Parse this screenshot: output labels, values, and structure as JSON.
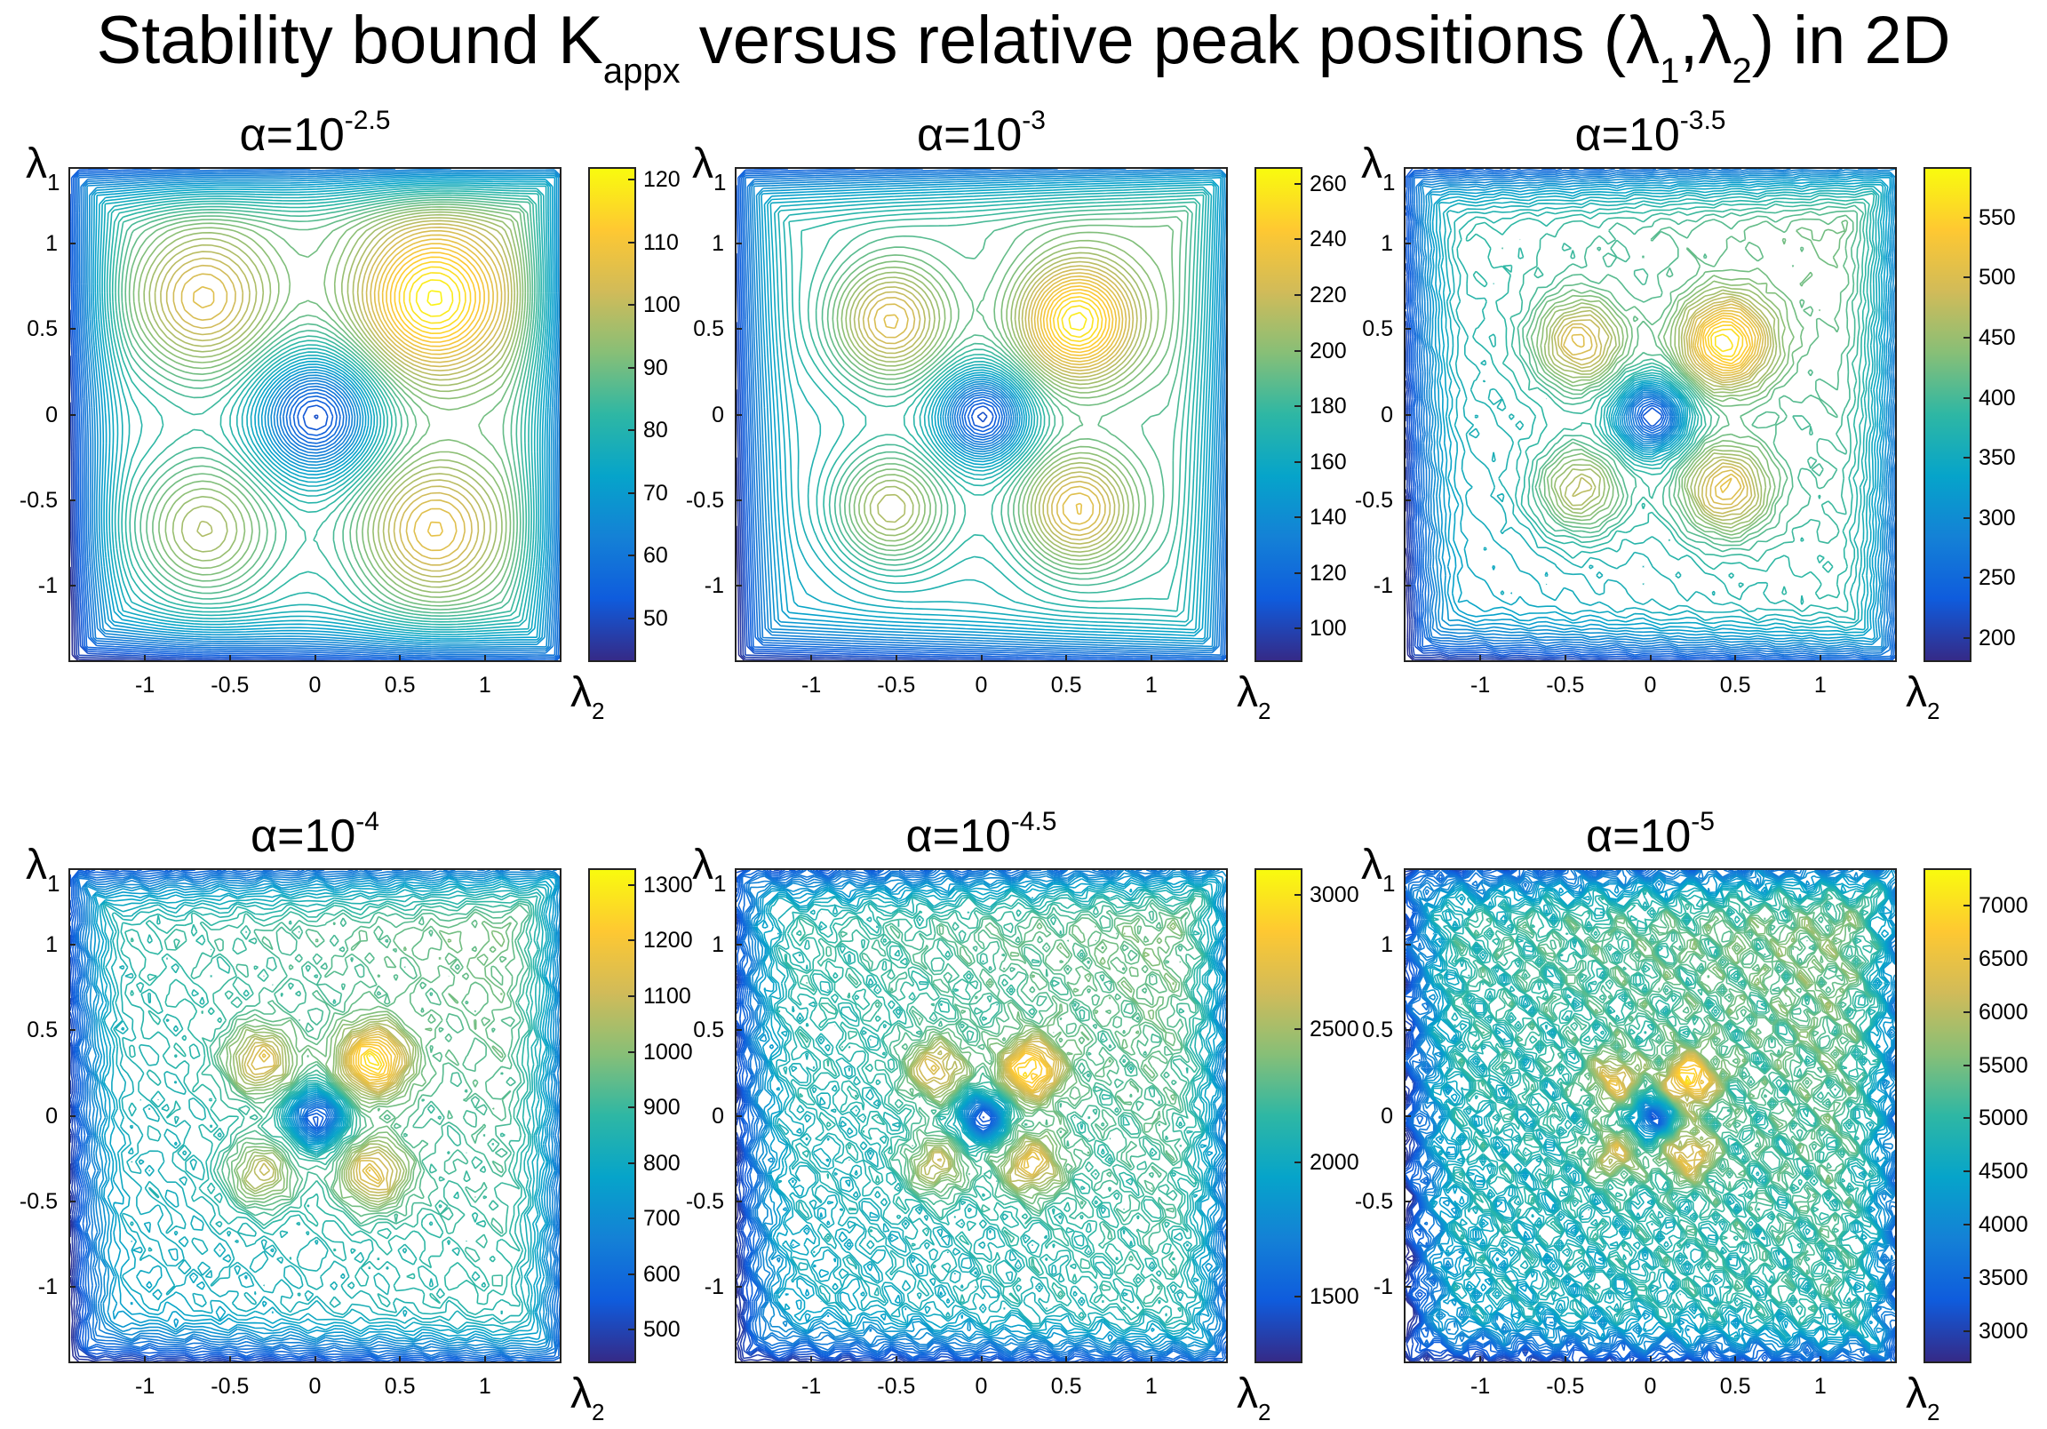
{
  "title": {
    "main_pre": "Stability bound K",
    "main_sub": "appx",
    "main_post": " versus relative peak positions (λ",
    "lam1_sub": "1",
    "comma": ",λ",
    "lam2_sub": "2",
    "main_end": ") in 2D"
  },
  "colors": {
    "viridis_like": [
      "#352a87",
      "#0f5cdd",
      "#1481d6",
      "#06a4ca",
      "#2eb7a4",
      "#87bf77",
      "#d1bb59",
      "#fec832",
      "#f9fb0e"
    ]
  },
  "chart_data": [
    {
      "type": "contour",
      "title_base": "α=10",
      "title_exp": "-2.5",
      "xlabel": "λ",
      "xlabel_sub": "2",
      "ylabel": "λ",
      "ylabel_sub": "1",
      "xlim": [
        -1.45,
        1.45
      ],
      "ylim": [
        -1.45,
        1.45
      ],
      "xticks": [
        "-1",
        "-0.5",
        "0",
        "0.5",
        "1"
      ],
      "xtick_values": [
        -1,
        -0.5,
        0,
        0.5,
        1
      ],
      "yticks": [
        "1",
        "0.5",
        "0",
        "-0.5",
        "-1"
      ],
      "ytick_values": [
        1,
        0.5,
        0,
        -0.5,
        -1
      ],
      "clim": [
        43,
        122
      ],
      "cticks": [
        "120",
        "110",
        "100",
        "90",
        "80",
        "70",
        "60",
        "50"
      ],
      "ctick_values": [
        120,
        110,
        100,
        90,
        80,
        70,
        60,
        50
      ],
      "peak_offset": 0.68,
      "peak_width": 0.32,
      "noise": 0.0
    },
    {
      "type": "contour",
      "title_base": "α=10",
      "title_exp": "-3",
      "xlabel": "λ",
      "xlabel_sub": "2",
      "ylabel": "λ",
      "ylabel_sub": "1",
      "xlim": [
        -1.45,
        1.45
      ],
      "ylim": [
        -1.45,
        1.45
      ],
      "xticks": [
        "-1",
        "-0.5",
        "0",
        "0.5",
        "1"
      ],
      "xtick_values": [
        -1,
        -0.5,
        0,
        0.5,
        1
      ],
      "yticks": [
        "1",
        "0.5",
        "0",
        "-0.5",
        "-1"
      ],
      "ytick_values": [
        1,
        0.5,
        0,
        -0.5,
        -1
      ],
      "clim": [
        88,
        266
      ],
      "cticks": [
        "260",
        "240",
        "220",
        "200",
        "180",
        "160",
        "140",
        "120",
        "100"
      ],
      "ctick_values": [
        260,
        240,
        220,
        200,
        180,
        160,
        140,
        120,
        100
      ],
      "peak_offset": 0.55,
      "peak_width": 0.24,
      "noise": 0.0
    },
    {
      "type": "contour",
      "title_base": "α=10",
      "title_exp": "-3.5",
      "xlabel": "λ",
      "xlabel_sub": "2",
      "ylabel": "λ",
      "ylabel_sub": "1",
      "xlim": [
        -1.45,
        1.45
      ],
      "ylim": [
        -1.45,
        1.45
      ],
      "xticks": [
        "-1",
        "-0.5",
        "0",
        "0.5",
        "1"
      ],
      "xtick_values": [
        -1,
        -0.5,
        0,
        0.5,
        1
      ],
      "yticks": [
        "1",
        "0.5",
        "0",
        "-0.5",
        "-1"
      ],
      "ytick_values": [
        1,
        0.5,
        0,
        -0.5,
        -1
      ],
      "clim": [
        180,
        592
      ],
      "cticks": [
        "550",
        "500",
        "450",
        "400",
        "350",
        "300",
        "250",
        "200"
      ],
      "ctick_values": [
        550,
        500,
        450,
        400,
        350,
        300,
        250,
        200
      ],
      "peak_offset": 0.43,
      "peak_width": 0.19,
      "noise": 0.03
    },
    {
      "type": "contour",
      "title_base": "α=10",
      "title_exp": "-4",
      "xlabel": "λ",
      "xlabel_sub": "2",
      "ylabel": "λ",
      "ylabel_sub": "1",
      "xlim": [
        -1.45,
        1.45
      ],
      "ylim": [
        -1.45,
        1.45
      ],
      "xticks": [
        "-1",
        "-0.5",
        "0",
        "0.5",
        "1"
      ],
      "xtick_values": [
        -1,
        -0.5,
        0,
        0.5,
        1
      ],
      "yticks": [
        "1",
        "0.5",
        "0",
        "-0.5",
        "-1"
      ],
      "ytick_values": [
        1,
        0.5,
        0,
        -0.5,
        -1
      ],
      "clim": [
        440,
        1330
      ],
      "cticks": [
        "1300",
        "1200",
        "1100",
        "1000",
        "900",
        "800",
        "700",
        "600",
        "500"
      ],
      "ctick_values": [
        1300,
        1200,
        1100,
        1000,
        900,
        800,
        700,
        600,
        500
      ],
      "peak_offset": 0.33,
      "peak_width": 0.15,
      "noise": 0.06
    },
    {
      "type": "contour",
      "title_base": "α=10",
      "title_exp": "-4.5",
      "xlabel": "λ",
      "xlabel_sub": "2",
      "ylabel": "λ",
      "ylabel_sub": "1",
      "xlim": [
        -1.45,
        1.45
      ],
      "ylim": [
        -1.45,
        1.45
      ],
      "xticks": [
        "-1",
        "-0.5",
        "0",
        "0.5",
        "1"
      ],
      "xtick_values": [
        -1,
        -0.5,
        0,
        0.5,
        1
      ],
      "yticks": [
        "1",
        "0.5",
        "0",
        "-0.5",
        "-1"
      ],
      "ytick_values": [
        1,
        0.5,
        0,
        -0.5,
        -1
      ],
      "clim": [
        1250,
        3100
      ],
      "cticks": [
        "3000",
        "2500",
        "2000",
        "1500"
      ],
      "ctick_values": [
        3000,
        2500,
        2000,
        1500
      ],
      "peak_offset": 0.28,
      "peak_width": 0.13,
      "noise": 0.1
    },
    {
      "type": "contour",
      "title_base": "α=10",
      "title_exp": "-5",
      "xlabel": "λ",
      "xlabel_sub": "2",
      "ylabel": "λ",
      "ylabel_sub": "1",
      "xlim": [
        -1.45,
        1.45
      ],
      "ylim": [
        -1.45,
        1.45
      ],
      "xticks": [
        "-1",
        "-0.5",
        "0",
        "0.5",
        "1"
      ],
      "xtick_values": [
        -1,
        -0.5,
        0,
        0.5,
        1
      ],
      "yticks": [
        "1",
        "0.5",
        "0",
        "-0.5",
        "-1"
      ],
      "ytick_values": [
        1,
        0.5,
        0,
        -0.5,
        -1
      ],
      "clim": [
        2700,
        7350
      ],
      "cticks": [
        "7000",
        "6500",
        "6000",
        "5500",
        "5000",
        "4500",
        "4000",
        "3500",
        "3000"
      ],
      "ctick_values": [
        7000,
        6500,
        6000,
        5500,
        5000,
        4500,
        4000,
        3500,
        3000
      ],
      "peak_offset": 0.22,
      "peak_width": 0.11,
      "noise": 0.18
    }
  ]
}
